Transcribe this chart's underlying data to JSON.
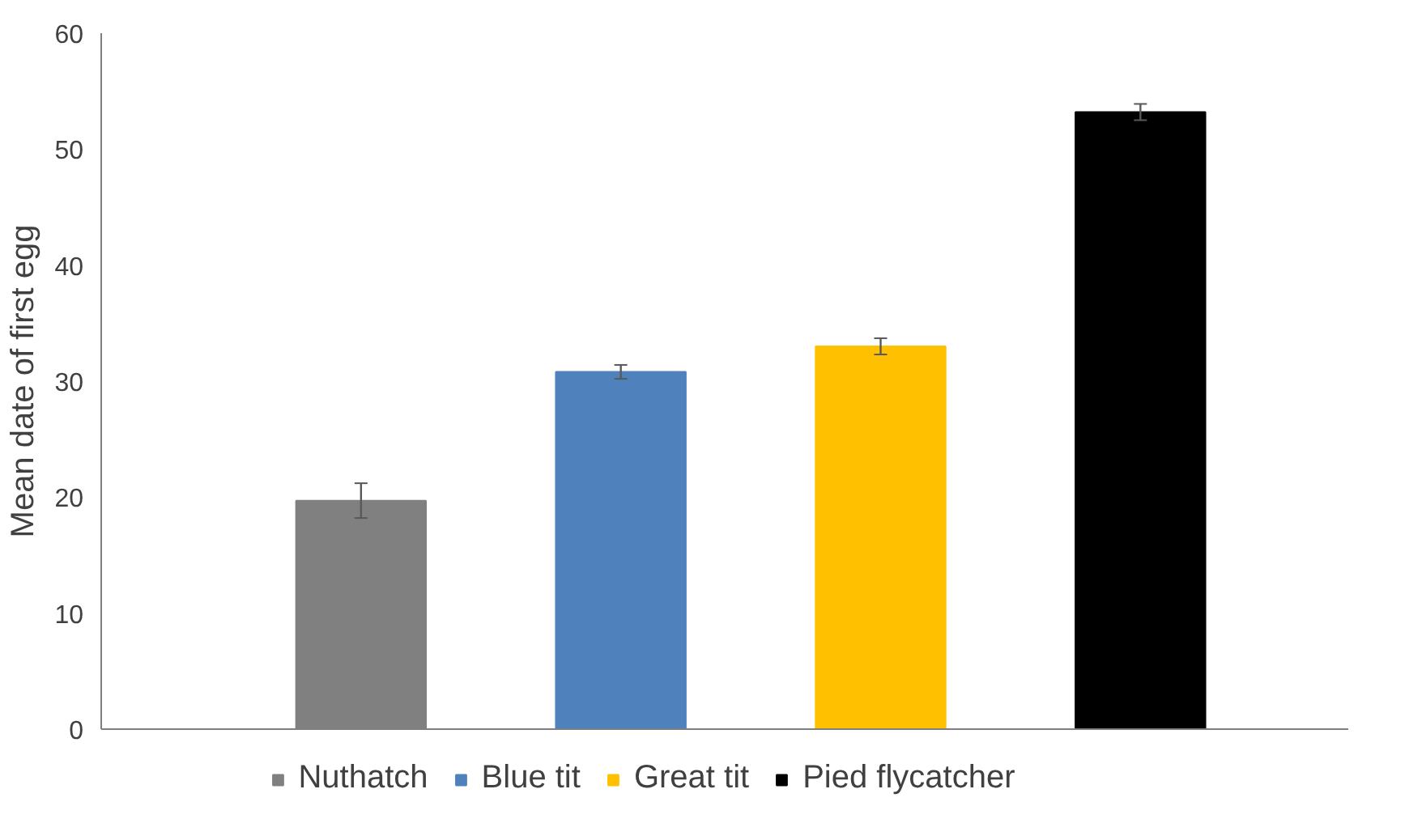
{
  "chart_data": {
    "type": "bar",
    "ylabel": "Mean date of first egg",
    "categories": [
      null,
      null,
      null,
      null
    ],
    "stacked": true,
    "series": [
      {
        "name": "Nuthatch",
        "color": "#808080",
        "values": [
          19.7,
          null,
          null,
          null
        ],
        "errors": [
          1.5,
          null,
          null,
          null
        ]
      },
      {
        "name": "Blue tit",
        "color": "#4f81bd",
        "values": [
          null,
          30.8,
          null,
          null
        ],
        "errors": [
          null,
          0.6,
          null,
          null
        ]
      },
      {
        "name": "Great tit",
        "color": "#ffc000",
        "values": [
          null,
          null,
          33.0,
          null
        ],
        "errors": [
          null,
          null,
          0.7,
          null
        ]
      },
      {
        "name": "Pied flycatcher",
        "color": "#000000",
        "values": [
          null,
          null,
          null,
          53.2
        ],
        "errors": [
          null,
          null,
          null,
          0.7
        ]
      }
    ],
    "ylim": [
      0,
      60
    ],
    "yticks": [
      0,
      10,
      20,
      30,
      40,
      50,
      60
    ],
    "grid": false,
    "legend": "bottom"
  }
}
